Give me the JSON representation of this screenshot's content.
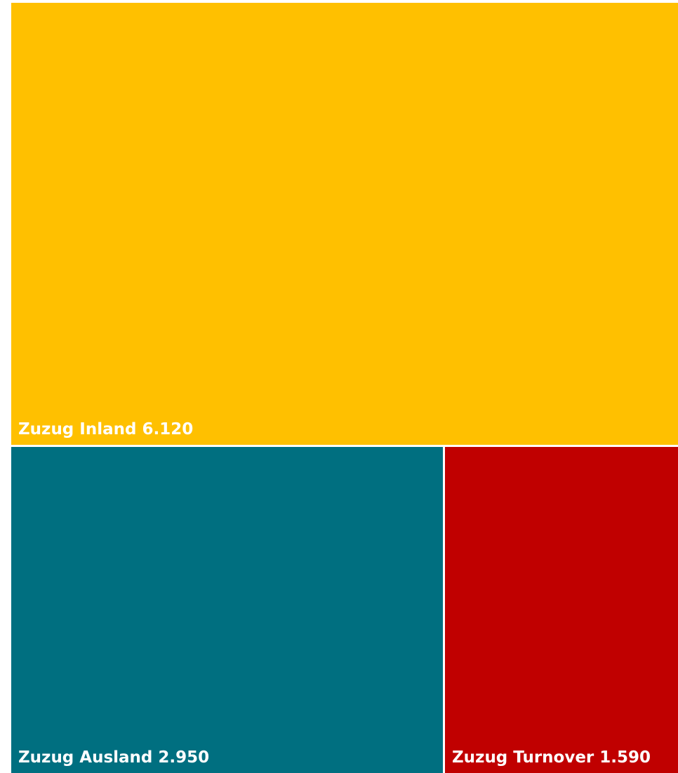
{
  "chart_data": {
    "type": "treemap",
    "title": "",
    "items": [
      {
        "label": "Zuzug Inland",
        "value": 6120,
        "value_text": "6.120",
        "color": "#FFC000"
      },
      {
        "label": "Zuzug Ausland",
        "value": 2950,
        "value_text": "2.950",
        "color": "#006F80"
      },
      {
        "label": "Zuzug Turnover",
        "value": 1590,
        "value_text": "1.590",
        "color": "#C00000"
      }
    ]
  }
}
